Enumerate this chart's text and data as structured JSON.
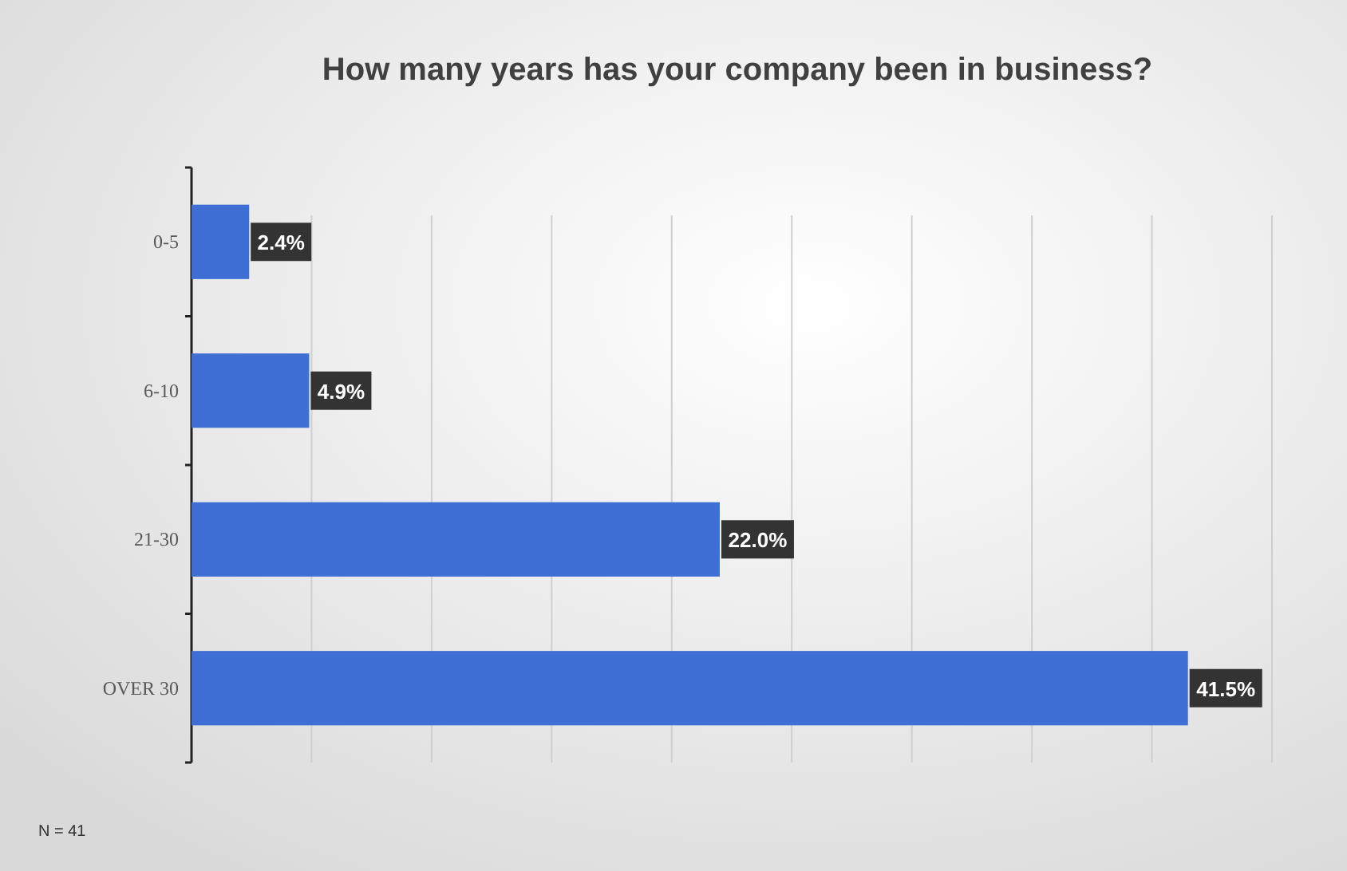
{
  "chart_data": {
    "type": "bar",
    "orientation": "horizontal",
    "title": "How many years has your company been in business?",
    "categories": [
      "0-5",
      "6-10",
      "21-30",
      "OVER 30"
    ],
    "values": [
      2.4,
      4.9,
      22.0,
      41.5
    ],
    "value_labels": [
      "2.4%",
      "4.9%",
      "22.0%",
      "41.5%"
    ],
    "color": "#3f6fd4",
    "xlim": [
      0,
      45
    ],
    "xticks": [
      {
        "value": 0,
        "label": null
      },
      {
        "value": 5,
        "label": null
      },
      {
        "value": 10,
        "label": null
      },
      {
        "value": 15,
        "label": null
      },
      {
        "value": 20,
        "label": null
      },
      {
        "value": 25,
        "label": null
      },
      {
        "value": 30,
        "label": null
      },
      {
        "value": 35,
        "label": null
      },
      {
        "value": 40,
        "label": null
      },
      {
        "value": 45,
        "label": null
      }
    ],
    "grid": "x",
    "tick_labels": "y",
    "annotations": [
      "N = 41"
    ]
  }
}
